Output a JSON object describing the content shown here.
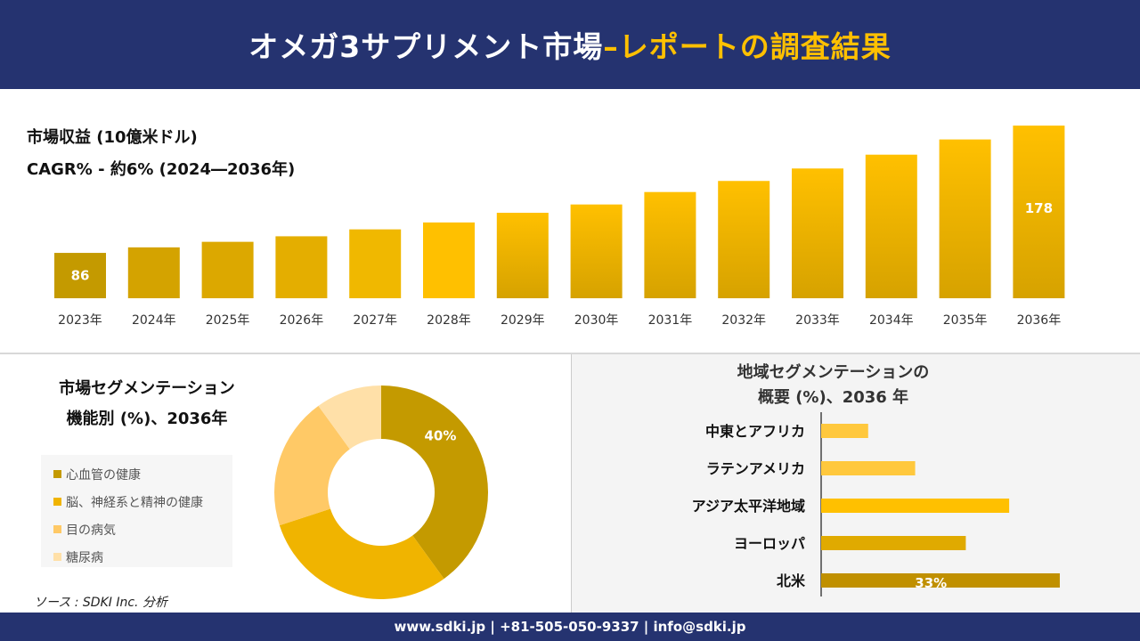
{
  "header": {
    "title_main": "オメガ3サプリメント市場 ",
    "title_highlight": "–レポートの調査結果"
  },
  "colors": {
    "navy": "#253370",
    "accent": "#ffc000"
  },
  "revenue": {
    "title": "市場収益 (10億米ドル)",
    "cagr": "CAGR% - 約6% (2024―2036年)"
  },
  "segment": {
    "title_line1": "市場セグメンテーション",
    "title_line2": "機能別 (%)、2036年"
  },
  "region": {
    "title_line1": "地域セグメンテーションの",
    "title_line2": "概要 (%)、2036 年"
  },
  "source": "ソース : SDKI Inc. 分析",
  "footer": "www.sdki.jp | +81-505-050-9337 | info@sdki.jp",
  "chart_data": [
    {
      "type": "bar",
      "title": "市場収益 (10億米ドル)",
      "categories": [
        "2023年",
        "2024年",
        "2025年",
        "2026年",
        "2027年",
        "2028年",
        "2029年",
        "2030年",
        "2031年",
        "2032年",
        "2033年",
        "2034年",
        "2035年",
        "2036年"
      ],
      "values": [
        86,
        90,
        94,
        98,
        103,
        108,
        115,
        121,
        130,
        138,
        147,
        157,
        168,
        178
      ],
      "data_labels": {
        "0": "86",
        "13": "178"
      }
    },
    {
      "type": "pie",
      "title": "機能別 (%)、2036年",
      "donut": true,
      "categories": [
        "心血管の健康",
        "脳、神経系と精神の健康",
        "目の病気",
        "糖尿病"
      ],
      "values": [
        40,
        30,
        20,
        10
      ],
      "data_labels": {
        "0": "40%"
      },
      "colors": [
        "#c49a00",
        "#f0b400",
        "#ffc966",
        "#ffe0a8"
      ],
      "legend": "left"
    },
    {
      "type": "bar",
      "orientation": "horizontal",
      "title": "地域セグメンテーションの概要 (%)、2036 年",
      "categories": [
        "中東とアフリカ",
        "ラテンアメリカ",
        "アジア太平洋地域",
        "ヨーロッパ",
        "北米"
      ],
      "values": [
        6.5,
        13,
        26,
        20,
        33
      ],
      "data_labels": {
        "4": "33%"
      },
      "colors": [
        "#ffc83d",
        "#ffc83d",
        "#ffc000",
        "#e0aa00",
        "#c09000"
      ]
    }
  ]
}
